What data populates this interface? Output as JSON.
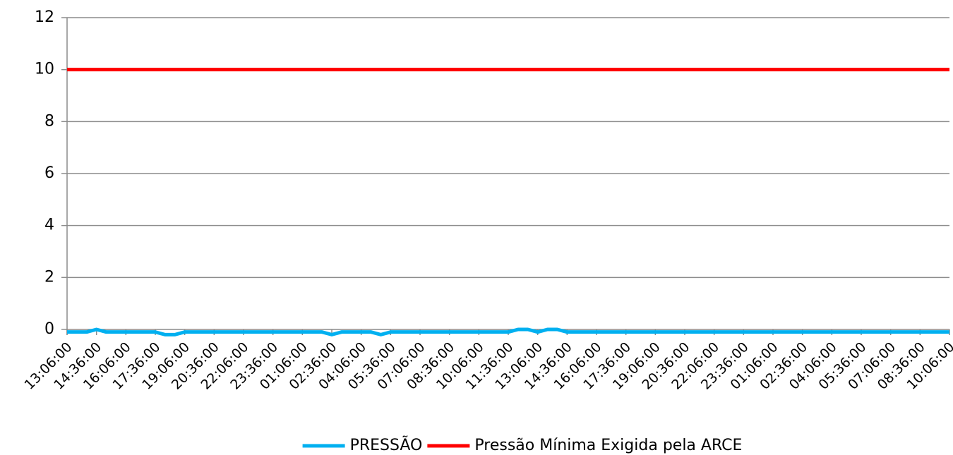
{
  "chart_data": {
    "type": "line",
    "categories": [
      "13:06:00",
      null,
      null,
      "14:36:00",
      null,
      null,
      "16:06:00",
      null,
      null,
      "17:36:00",
      null,
      null,
      "19:06:00",
      null,
      null,
      "20:36:00",
      null,
      null,
      "22:06:00",
      null,
      null,
      "23:36:00",
      null,
      null,
      "01:06:00",
      null,
      null,
      "02:36:00",
      null,
      null,
      "04:06:00",
      null,
      null,
      "05:36:00",
      null,
      null,
      "07:06:00",
      null,
      null,
      "08:36:00",
      null,
      null,
      "10:06:00",
      null,
      null,
      "11:36:00",
      null,
      null,
      "13:06:00",
      null,
      null,
      "14:36:00",
      null,
      null,
      "16:06:00",
      null,
      null,
      "17:36:00",
      null,
      null,
      "19:06:00",
      null,
      null,
      "20:36:00",
      null,
      null,
      "22:06:00",
      null,
      null,
      "23:36:00",
      null,
      null,
      "01:06:00",
      null,
      null,
      "02:36:00",
      null,
      null,
      "04:06:00",
      null,
      null,
      "05:36:00",
      null,
      null,
      "07:06:00",
      null,
      null,
      "08:36:00",
      null,
      null,
      "10:06:00"
    ],
    "series": [
      {
        "name": "PRESSÃO",
        "color": "#00b0f0",
        "values": [
          -0.1,
          -0.1,
          -0.1,
          0,
          -0.1,
          -0.1,
          -0.1,
          -0.1,
          -0.1,
          -0.1,
          -0.2,
          -0.2,
          -0.1,
          -0.1,
          -0.1,
          -0.1,
          -0.1,
          -0.1,
          -0.1,
          -0.1,
          -0.1,
          -0.1,
          -0.1,
          -0.1,
          -0.1,
          -0.1,
          -0.1,
          -0.2,
          -0.1,
          -0.1,
          -0.1,
          -0.1,
          -0.2,
          -0.1,
          -0.1,
          -0.1,
          -0.1,
          -0.1,
          -0.1,
          -0.1,
          -0.1,
          -0.1,
          -0.1,
          -0.1,
          -0.1,
          -0.1,
          0,
          0,
          -0.1,
          0,
          0,
          -0.1,
          -0.1,
          -0.1,
          -0.1,
          -0.1,
          -0.1,
          -0.1,
          -0.1,
          -0.1,
          -0.1,
          -0.1,
          -0.1,
          -0.1,
          -0.1,
          -0.1,
          -0.1,
          -0.1,
          -0.1,
          -0.1,
          -0.1,
          -0.1,
          -0.1,
          -0.1,
          -0.1,
          -0.1,
          -0.1,
          -0.1,
          -0.1,
          -0.1,
          -0.1,
          -0.1,
          -0.1,
          -0.1,
          -0.1,
          -0.1,
          -0.1,
          -0.1,
          -0.1,
          -0.1,
          -0.1
        ]
      },
      {
        "name": "Pressão Mínima Exigida pela ARCE",
        "color": "#ff0000",
        "values": [
          10,
          10,
          10,
          10,
          10,
          10,
          10,
          10,
          10,
          10,
          10,
          10,
          10,
          10,
          10,
          10,
          10,
          10,
          10,
          10,
          10,
          10,
          10,
          10,
          10,
          10,
          10,
          10,
          10,
          10,
          10,
          10,
          10,
          10,
          10,
          10,
          10,
          10,
          10,
          10,
          10,
          10,
          10,
          10,
          10,
          10,
          10,
          10,
          10,
          10,
          10,
          10,
          10,
          10,
          10,
          10,
          10,
          10,
          10,
          10,
          10,
          10,
          10,
          10,
          10,
          10,
          10,
          10,
          10,
          10,
          10,
          10,
          10,
          10,
          10,
          10,
          10,
          10,
          10,
          10,
          10,
          10,
          10,
          10,
          10,
          10,
          10,
          10,
          10,
          10,
          10
        ]
      }
    ],
    "ylim": [
      0,
      12
    ],
    "yticks": [
      0,
      2,
      4,
      6,
      8,
      10,
      12
    ],
    "grid": true,
    "legend": "bottom"
  }
}
